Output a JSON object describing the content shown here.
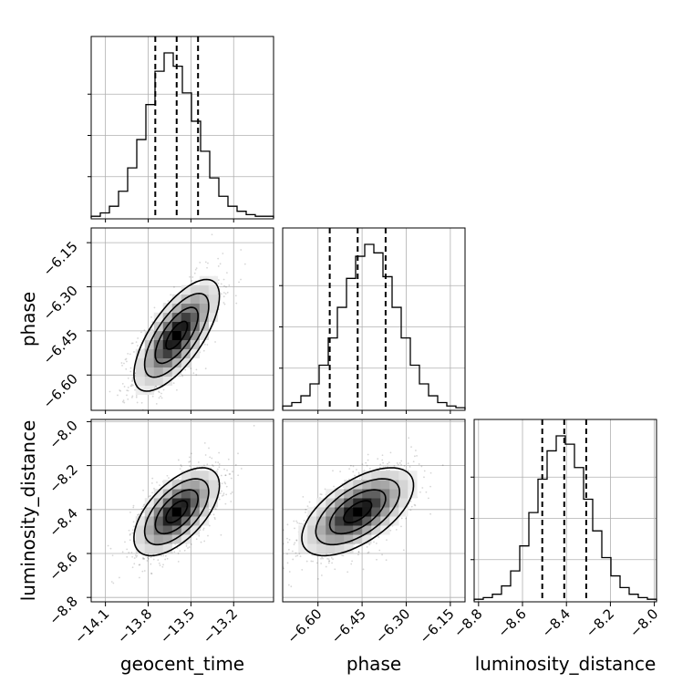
{
  "chart_data": {
    "type": "corner",
    "grid": true,
    "parameters": [
      {
        "name": "geocent_time",
        "label": "geocent_time",
        "range": [
          -14.2,
          -12.92
        ],
        "ticks": [
          -14.1,
          -13.8,
          -13.5,
          -13.2
        ],
        "tick_labels": [
          "−14.1",
          "−13.8",
          "−13.5",
          "−13.2"
        ],
        "quantiles": [
          -13.75,
          -13.6,
          -13.45
        ]
      },
      {
        "name": "phase",
        "label": "phase",
        "range": [
          -6.72,
          -6.1
        ],
        "ticks": [
          -6.6,
          -6.45,
          -6.3,
          -6.15
        ],
        "tick_labels": [
          "−6.60",
          "−6.45",
          "−6.30",
          "−6.15"
        ],
        "quantiles": [
          -6.56,
          -6.465,
          -6.37
        ]
      },
      {
        "name": "luminosity_distance",
        "label": "luminosity_distance",
        "range": [
          -8.82,
          -7.99
        ],
        "ticks": [
          -8.8,
          -8.6,
          -8.4,
          -8.2,
          -8.0
        ],
        "tick_labels": [
          "−8.8",
          "−8.6",
          "−8.4",
          "−8.2",
          "−8.0"
        ],
        "quantiles": [
          -8.51,
          -8.41,
          -8.31
        ]
      }
    ],
    "histograms": {
      "geocent_time": {
        "bin_start": -14.2,
        "bin_width": 0.064,
        "counts": [
          1,
          3,
          7,
          16,
          30,
          47,
          68,
          88,
          99,
          91,
          75,
          58,
          40,
          24,
          13,
          7,
          4,
          2,
          1,
          1
        ]
      },
      "phase": {
        "bin_start": -6.72,
        "bin_width": 0.031,
        "counts": [
          2,
          4,
          8,
          15,
          26,
          42,
          60,
          77,
          90,
          97,
          92,
          78,
          60,
          42,
          26,
          15,
          8,
          4,
          2,
          1
        ]
      },
      "luminosity_distance": {
        "bin_start": -8.82,
        "bin_width": 0.0415,
        "counts": [
          1,
          2,
          4,
          9,
          18,
          33,
          53,
          73,
          90,
          99,
          94,
          80,
          61,
          42,
          26,
          15,
          8,
          4,
          2,
          1
        ]
      }
    },
    "joint_2d": [
      {
        "x": "geocent_time",
        "y": "phase",
        "mean": [
          -13.6,
          -6.465
        ],
        "std": [
          0.15,
          0.095
        ],
        "correlation": 0.7
      },
      {
        "x": "geocent_time",
        "y": "luminosity_distance",
        "mean": [
          -13.6,
          -8.41
        ],
        "std": [
          0.15,
          0.1
        ],
        "correlation": 0.6
      },
      {
        "x": "phase",
        "y": "luminosity_distance",
        "mean": [
          -6.465,
          -8.41
        ],
        "std": [
          0.095,
          0.1
        ],
        "correlation": 0.6
      }
    ],
    "contour_levels": [
      0.5,
      1.0,
      1.5,
      2.0
    ]
  }
}
